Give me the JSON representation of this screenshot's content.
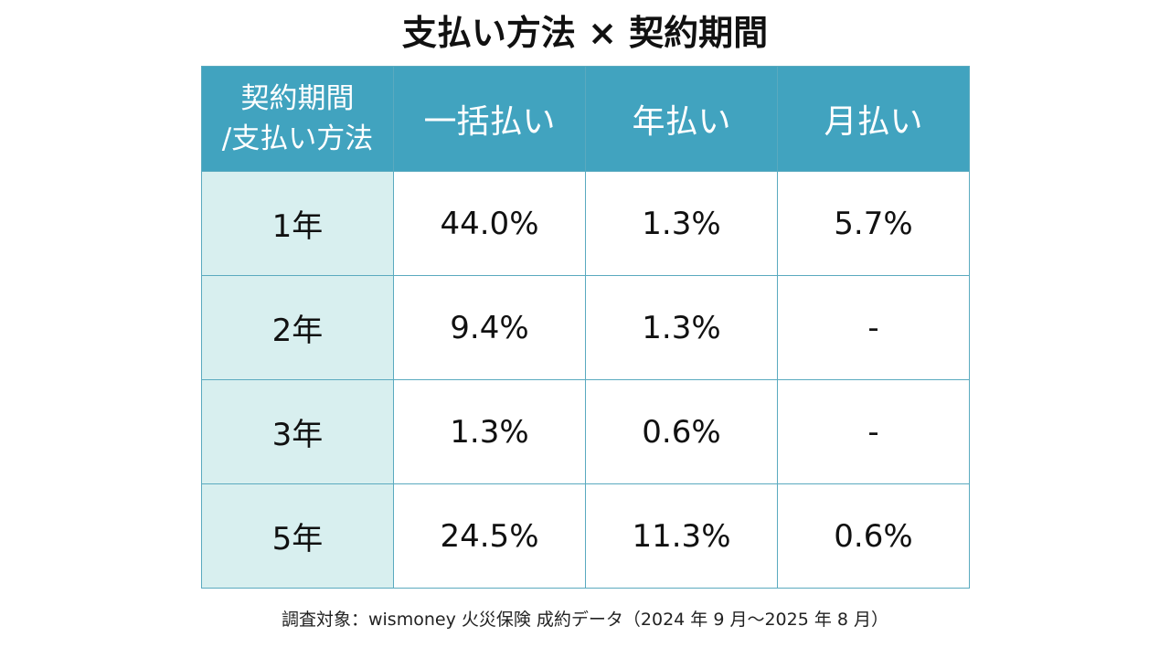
{
  "title": "支払い方法 × 契約期間",
  "colors": {
    "header_bg": "#41a3bf",
    "row_header_bg": "#d8efef",
    "border": "#5aaabf",
    "cell_bg": "#ffffff"
  },
  "chart_data": {
    "type": "table",
    "title": "支払い方法 × 契約期間",
    "corner_label": [
      "契約期間",
      "/支払い方法"
    ],
    "columns": [
      "一括払い",
      "年払い",
      "月払い"
    ],
    "rows": [
      {
        "label": "1年",
        "values": [
          "44.0%",
          "1.3%",
          "5.7%"
        ]
      },
      {
        "label": "2年",
        "values": [
          "9.4%",
          "1.3%",
          "-"
        ]
      },
      {
        "label": "3年",
        "values": [
          "1.3%",
          "0.6%",
          "-"
        ]
      },
      {
        "label": "5年",
        "values": [
          "24.5%",
          "11.3%",
          "0.6%"
        ]
      }
    ]
  },
  "note": "調査対象：wismoney 火災保険 成約データ（2024 年 9 月〜2025 年 8 月）"
}
